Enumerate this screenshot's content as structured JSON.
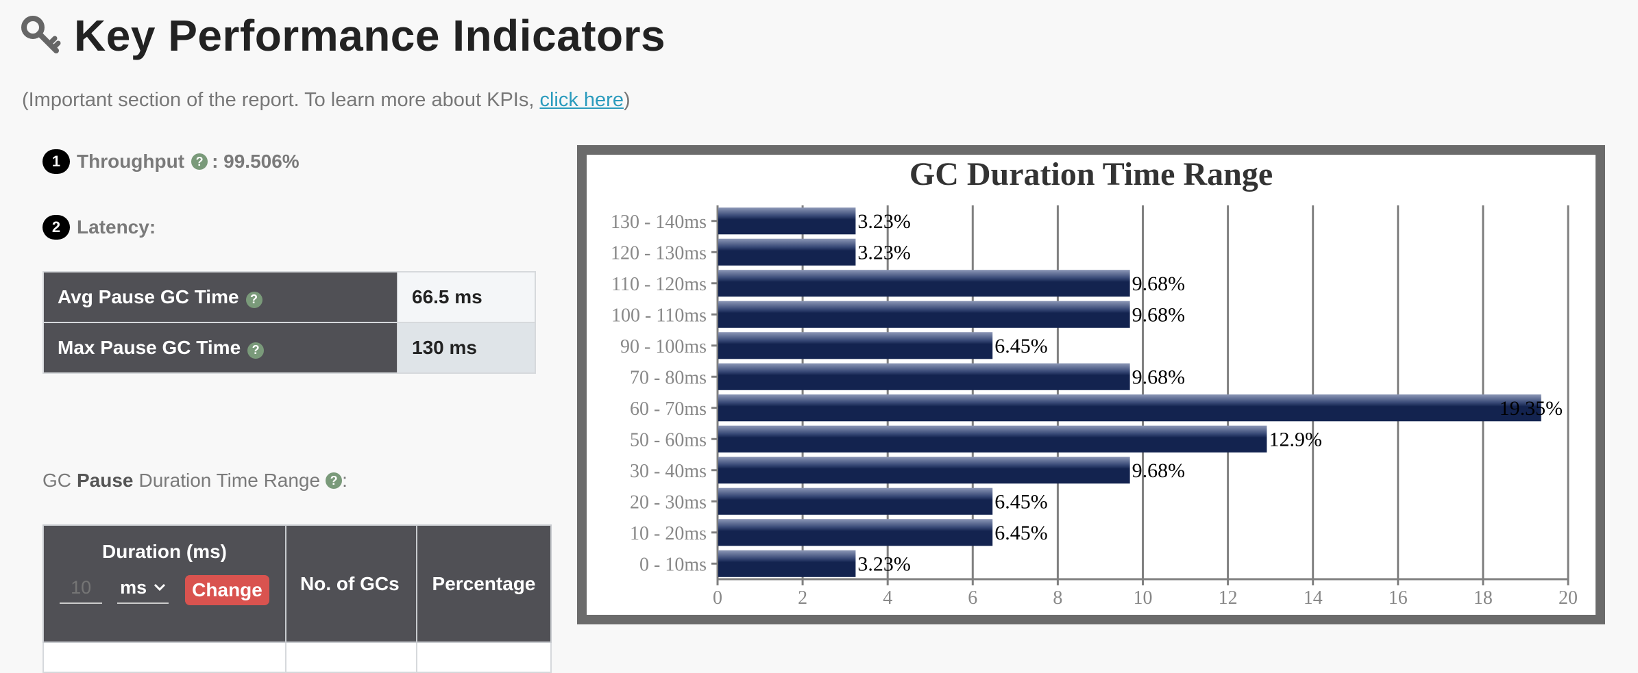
{
  "header": {
    "title": "Key Performance Indicators",
    "icon": "key-icon"
  },
  "subtitle": {
    "prefix": "(Important section of the report. To learn more about KPIs, ",
    "link": "click here",
    "suffix": ")"
  },
  "throughput": {
    "number": "1",
    "label": "Throughput",
    "value": ": 99.506%"
  },
  "latency": {
    "number": "2",
    "label": "Latency:",
    "rows": [
      {
        "label": "Avg Pause GC Time",
        "value": "66.5 ms"
      },
      {
        "label": "Max Pause GC Time",
        "value": "130 ms"
      }
    ]
  },
  "pause_range": {
    "prefix": "GC",
    "bold": "Pause",
    "suffix": "Duration Time Range",
    "colon": ":"
  },
  "duration_table": {
    "headers": {
      "duration": "Duration (ms)",
      "count": "No. of GCs",
      "percentage": "Percentage"
    },
    "input_placeholder": "10",
    "unit": "ms",
    "change_button": "Change"
  },
  "help_glyph": "?",
  "chart_data": {
    "type": "bar",
    "orientation": "horizontal",
    "title": "GC Duration Time Range",
    "categories": [
      "0 - 10ms",
      "10 - 20ms",
      "20 - 30ms",
      "30 - 40ms",
      "50 - 60ms",
      "60 - 70ms",
      "70 - 80ms",
      "90 - 100ms",
      "100 - 110ms",
      "110 - 120ms",
      "120 - 130ms",
      "130 - 140ms"
    ],
    "values": [
      3.23,
      6.45,
      6.45,
      9.68,
      12.9,
      19.35,
      9.68,
      6.45,
      9.68,
      9.68,
      3.23,
      3.23
    ],
    "labels": [
      "3.23%",
      "6.45%",
      "6.45%",
      "9.68%",
      "12.9%",
      "19.35%",
      "9.68%",
      "6.45%",
      "9.68%",
      "9.68%",
      "3.23%",
      "3.23%"
    ],
    "xticks": [
      0,
      2,
      4,
      6,
      8,
      10,
      12,
      14,
      16,
      18,
      20
    ],
    "xlim": [
      0,
      20
    ],
    "grid": true,
    "colors": {
      "bar": "#13234f",
      "bar_highlight": "#6f7ca0",
      "grid": "#808080",
      "frame": "#6b6b6b"
    }
  }
}
